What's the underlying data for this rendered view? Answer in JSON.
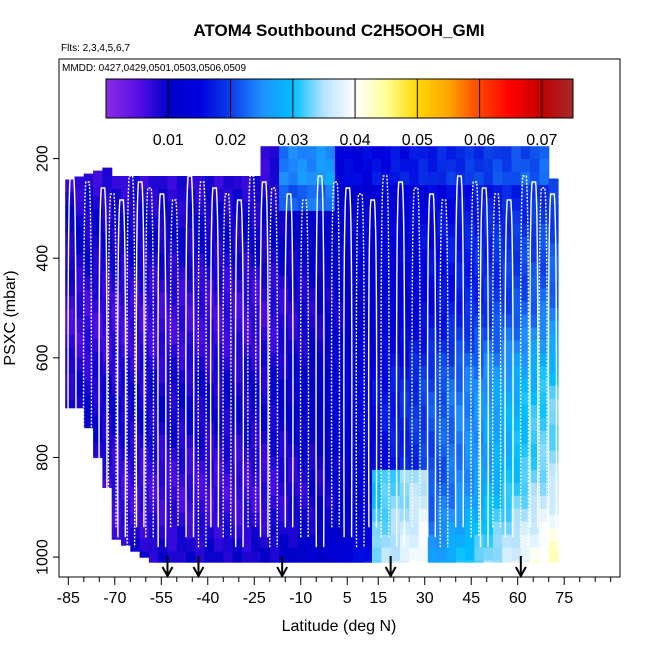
{
  "chart_data": {
    "type": "heatmap",
    "title": "ATOM4 Southbound C2H5OOH_GMI",
    "flights_note": "Flts: 2,3,4,5,6,7",
    "dates_note": "MMDD: 0427,0429,0501,0503,0506,0509",
    "xlabel": "Latitude (deg N)",
    "ylabel": "PSXC (mbar)",
    "xlim": [
      -88,
      93
    ],
    "ylim": [
      1040,
      0
    ],
    "x_ticks": [
      -85,
      -70,
      -55,
      -40,
      -25,
      -10,
      5,
      15,
      30,
      45,
      60,
      75
    ],
    "x_tick_labels": [
      "-85",
      "-70",
      "-55",
      "-40",
      "-25",
      "-10",
      "5",
      "15",
      "30",
      "45",
      "60",
      "75"
    ],
    "y_ticks": [
      200,
      400,
      600,
      800,
      1000
    ],
    "y_tick_labels": [
      "200",
      "400",
      "600",
      "800",
      "1000"
    ],
    "colorbar": {
      "min": 0.0,
      "max": 0.075,
      "ticks": [
        0.01,
        0.02,
        0.03,
        0.04,
        0.05,
        0.06,
        0.07
      ],
      "tick_labels": [
        "0.01",
        "0.02",
        "0.03",
        "0.04",
        "0.05",
        "0.06",
        "0.07"
      ],
      "color_stops": [
        "#8a2be2",
        "#5a10e8",
        "#0000c8",
        "#0000e0",
        "#0a3ee8",
        "#1e90ff",
        "#00bfff",
        "#b7e3ff",
        "#ffffff",
        "#ffff99",
        "#ffd700",
        "#ffa500",
        "#ff4500",
        "#ff0000",
        "#c00000",
        "#a52a2a"
      ]
    },
    "vertical_profiles_latitudes": [
      -85,
      -80,
      -75,
      -72,
      -69,
      -66,
      -63,
      -60,
      -56,
      -52,
      -47,
      -43,
      -39,
      -35,
      -31,
      -27,
      -23,
      -20,
      -15,
      -10,
      -5,
      0,
      4,
      8,
      12,
      16,
      21,
      26,
      31,
      35,
      40,
      45,
      48,
      52,
      56,
      61,
      64,
      67,
      70
    ],
    "arrow_latitudes": [
      -53,
      -43,
      -16,
      19,
      61
    ]
  }
}
